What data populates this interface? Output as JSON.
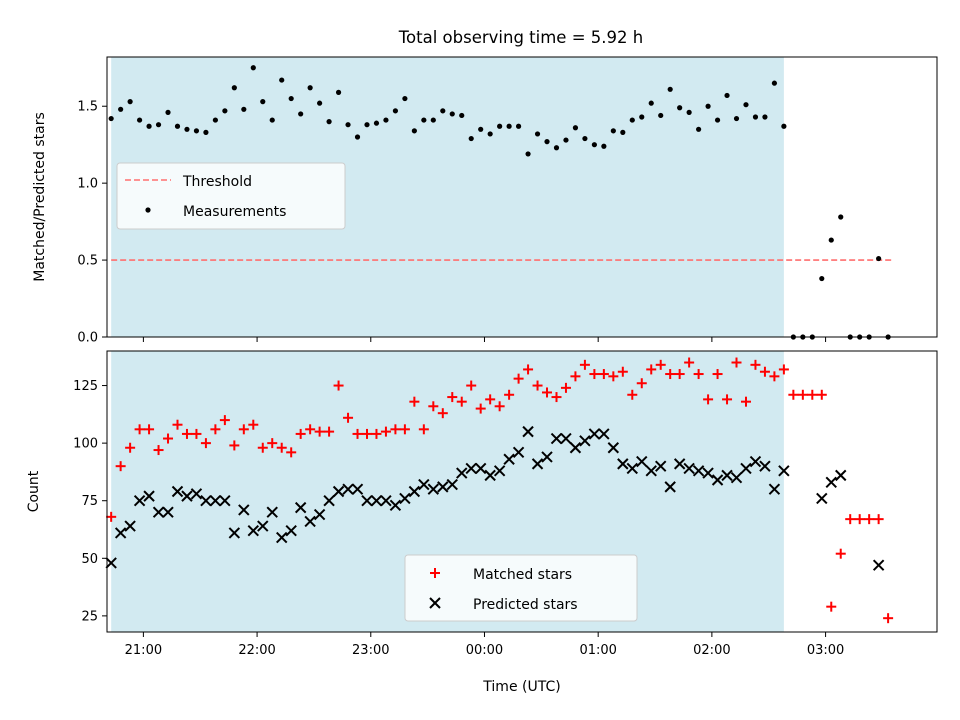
{
  "title": "Total observing time = 5.92 h",
  "colors": {
    "shade": "#add8e6",
    "threshold": "#ff6f6f",
    "measurement": "#000000",
    "matched": "#ff0000",
    "predicted": "#000000"
  },
  "chart_data": [
    {
      "type": "scatter",
      "panel": "top",
      "ylabel": "Matched/Predicted stars",
      "ylim": [
        0,
        1.82
      ],
      "yticks": [
        "0.0",
        "0.5",
        "1.0",
        "1.5"
      ],
      "xlim_hours": [
        20.68,
        27.98
      ],
      "observing_window": [
        "20:43",
        "26:38"
      ],
      "threshold": {
        "name": "Threshold",
        "value": 0.5,
        "x_range": [
          "20:43",
          "27:35"
        ]
      },
      "legend": {
        "position": "center-left",
        "entries": [
          "Threshold",
          "Measurements"
        ]
      },
      "series": [
        {
          "name": "Measurements",
          "marker": "dot",
          "x": [
            "20:43",
            "20:48",
            "20:53",
            "20:58",
            "21:03",
            "21:08",
            "21:13",
            "21:18",
            "21:23",
            "21:28",
            "21:33",
            "21:38",
            "21:43",
            "21:48",
            "21:53",
            "21:58",
            "22:03",
            "22:08",
            "22:13",
            "22:18",
            "22:23",
            "22:28",
            "22:33",
            "22:38",
            "22:43",
            "22:48",
            "22:53",
            "22:58",
            "23:03",
            "23:08",
            "23:13",
            "23:18",
            "23:23",
            "23:28",
            "23:33",
            "23:38",
            "23:43",
            "23:48",
            "23:53",
            "23:58",
            "24:03",
            "24:08",
            "24:13",
            "24:18",
            "24:23",
            "24:28",
            "24:33",
            "24:38",
            "24:43",
            "24:48",
            "24:53",
            "24:58",
            "25:03",
            "25:08",
            "25:13",
            "25:18",
            "25:23",
            "25:28",
            "25:33",
            "25:38",
            "25:43",
            "25:48",
            "25:53",
            "25:58",
            "26:03",
            "26:08",
            "26:13",
            "26:18",
            "26:23",
            "26:28",
            "26:33",
            "26:38",
            "26:43",
            "26:48",
            "26:53",
            "26:58",
            "27:03",
            "27:08",
            "27:13",
            "27:18",
            "27:23",
            "27:28",
            "27:33"
          ],
          "y": [
            1.42,
            1.48,
            1.53,
            1.41,
            1.37,
            1.38,
            1.46,
            1.37,
            1.35,
            1.34,
            1.33,
            1.41,
            1.47,
            1.62,
            1.48,
            1.75,
            1.53,
            1.41,
            1.67,
            1.55,
            1.45,
            1.62,
            1.52,
            1.4,
            1.59,
            1.38,
            1.3,
            1.38,
            1.39,
            1.41,
            1.47,
            1.55,
            1.34,
            1.41,
            1.41,
            1.47,
            1.45,
            1.44,
            1.29,
            1.35,
            1.32,
            1.37,
            1.37,
            1.37,
            1.19,
            1.32,
            1.27,
            1.23,
            1.28,
            1.36,
            1.29,
            1.25,
            1.24,
            1.34,
            1.33,
            1.41,
            1.43,
            1.52,
            1.44,
            1.61,
            1.49,
            1.46,
            1.35,
            1.5,
            1.41,
            1.57,
            1.42,
            1.51,
            1.43,
            1.43,
            1.65,
            1.37,
            0.0,
            0.0,
            0.0,
            0.38,
            0.63,
            0.78,
            0.0,
            0.0,
            0.0,
            0.51,
            0.0
          ]
        }
      ]
    },
    {
      "type": "scatter",
      "panel": "bottom",
      "xlabel": "Time (UTC)",
      "ylabel": "Count",
      "ylim": [
        18,
        140
      ],
      "yticks": [
        "25",
        "50",
        "75",
        "100",
        "125"
      ],
      "xticks": [
        "21:00",
        "22:00",
        "23:00",
        "00:00",
        "01:00",
        "02:00",
        "03:00"
      ],
      "xlim_hours": [
        20.68,
        27.98
      ],
      "observing_window": [
        "20:43",
        "26:38"
      ],
      "legend": {
        "position": "bottom-center",
        "entries": [
          "Matched stars",
          "Predicted stars"
        ]
      },
      "series": [
        {
          "name": "Matched stars",
          "marker": "plus",
          "x": [
            "20:43",
            "20:48",
            "20:53",
            "20:58",
            "21:03",
            "21:08",
            "21:13",
            "21:18",
            "21:23",
            "21:28",
            "21:33",
            "21:38",
            "21:43",
            "21:48",
            "21:53",
            "21:58",
            "22:03",
            "22:08",
            "22:13",
            "22:18",
            "22:23",
            "22:28",
            "22:33",
            "22:38",
            "22:43",
            "22:48",
            "22:53",
            "22:58",
            "23:03",
            "23:08",
            "23:13",
            "23:18",
            "23:23",
            "23:28",
            "23:33",
            "23:38",
            "23:43",
            "23:48",
            "23:53",
            "23:58",
            "24:03",
            "24:08",
            "24:13",
            "24:18",
            "24:23",
            "24:28",
            "24:33",
            "24:38",
            "24:43",
            "24:48",
            "24:53",
            "24:58",
            "25:03",
            "25:08",
            "25:13",
            "25:18",
            "25:23",
            "25:28",
            "25:33",
            "25:38",
            "25:43",
            "25:48",
            "25:53",
            "25:58",
            "26:03",
            "26:08",
            "26:13",
            "26:18",
            "26:23",
            "26:28",
            "26:33",
            "26:38",
            "26:43",
            "26:48",
            "26:53",
            "26:58",
            "27:03",
            "27:08",
            "27:13",
            "27:18",
            "27:23",
            "27:28",
            "27:33"
          ],
          "y": [
            68,
            90,
            98,
            106,
            106,
            97,
            102,
            108,
            104,
            104,
            100,
            106,
            110,
            99,
            106,
            108,
            98,
            100,
            98,
            96,
            104,
            106,
            105,
            105,
            125,
            111,
            104,
            104,
            104,
            105,
            106,
            106,
            118,
            106,
            116,
            113,
            120,
            118,
            125,
            115,
            119,
            116,
            121,
            128,
            132,
            125,
            122,
            120,
            124,
            129,
            134,
            130,
            130,
            129,
            131,
            121,
            126,
            132,
            134,
            130,
            130,
            135,
            130,
            119,
            130,
            119,
            135,
            118,
            134,
            131,
            129,
            132,
            121,
            121,
            121,
            121,
            29,
            52,
            67,
            67,
            67,
            67,
            24
          ]
        },
        {
          "name": "Predicted stars",
          "marker": "x",
          "x": [
            "20:43",
            "20:48",
            "20:53",
            "20:58",
            "21:03",
            "21:08",
            "21:13",
            "21:18",
            "21:23",
            "21:28",
            "21:33",
            "21:38",
            "21:43",
            "21:48",
            "21:53",
            "21:58",
            "22:03",
            "22:08",
            "22:13",
            "22:18",
            "22:23",
            "22:28",
            "22:33",
            "22:38",
            "22:43",
            "22:48",
            "22:53",
            "22:58",
            "23:03",
            "23:08",
            "23:13",
            "23:18",
            "23:23",
            "23:28",
            "23:33",
            "23:38",
            "23:43",
            "23:48",
            "23:53",
            "23:58",
            "24:03",
            "24:08",
            "24:13",
            "24:18",
            "24:23",
            "24:28",
            "24:33",
            "24:38",
            "24:43",
            "24:48",
            "24:53",
            "24:58",
            "25:03",
            "25:08",
            "25:13",
            "25:18",
            "25:23",
            "25:28",
            "25:33",
            "25:38",
            "25:43",
            "25:48",
            "25:53",
            "25:58",
            "26:03",
            "26:08",
            "26:13",
            "26:18",
            "26:23",
            "26:28",
            "26:33",
            "26:38",
            "26:58",
            "27:03",
            "27:08",
            "27:28"
          ],
          "y": [
            48,
            61,
            64,
            75,
            77,
            70,
            70,
            79,
            77,
            78,
            75,
            75,
            75,
            61,
            71,
            62,
            64,
            70,
            59,
            62,
            72,
            66,
            69,
            75,
            79,
            80,
            80,
            75,
            75,
            75,
            73,
            76,
            79,
            82,
            80,
            81,
            82,
            87,
            89,
            89,
            86,
            88,
            93,
            96,
            105,
            91,
            94,
            102,
            102,
            98,
            101,
            104,
            104,
            98,
            91,
            89,
            92,
            88,
            90,
            81,
            91,
            89,
            88,
            87,
            84,
            86,
            85,
            89,
            92,
            90,
            80,
            88,
            76,
            83,
            86,
            47
          ]
        }
      ]
    }
  ]
}
